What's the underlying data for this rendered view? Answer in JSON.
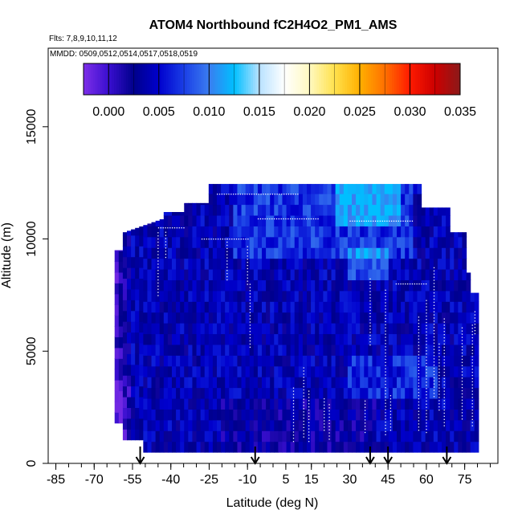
{
  "chart_data": {
    "type": "heatmap",
    "title": "ATOM4 Northbound fC2H4O2_PM1_AMS",
    "flights_label": "Flts: 7,8,9,10,11,12",
    "dates_label": "MMDD: 0509,0512,0514,0517,0518,0519",
    "xlabel": "Latitude (deg N)",
    "ylabel": "Altitude (m)",
    "xlim": [
      -88,
      88
    ],
    "ylim": [
      0,
      18500
    ],
    "x_ticks_labeled": [
      "-85",
      "-70",
      "-55",
      "-40",
      "-25",
      "-10",
      "5",
      "15",
      "30",
      "45",
      "60",
      "75"
    ],
    "x_tick_values": [
      -85,
      -70,
      -55,
      -40,
      -25,
      -10,
      5,
      15,
      30,
      45,
      60,
      75
    ],
    "x_minor_step": 5,
    "y_ticks": [
      "0",
      "5000",
      "10000",
      "15000"
    ],
    "y_tick_values": [
      0,
      5000,
      10000,
      15000
    ],
    "colorbar": {
      "min": -0.0025,
      "max": 0.035,
      "tick_labels": [
        "0.000",
        "0.005",
        "0.010",
        "0.015",
        "0.020",
        "0.025",
        "0.030",
        "0.035"
      ],
      "tick_values": [
        0.0,
        0.005,
        0.01,
        0.015,
        0.02,
        0.025,
        0.03,
        0.035
      ],
      "colors": [
        "#7d2ee8",
        "#3a0fd0",
        "#00008b",
        "#0000cd",
        "#1a3ee6",
        "#3a7df0",
        "#00bfff",
        "#b8e2ff",
        "#ffffff",
        "#fff9c0",
        "#ffe14d",
        "#ffb000",
        "#ff7000",
        "#ff1a00",
        "#cc0000",
        "#8b1a1a"
      ]
    },
    "flight_marker_latitudes": [
      -52,
      -7,
      38,
      45,
      68
    ],
    "profile": {
      "top_altitude_m": 12450,
      "bottom_altitude_m": 500,
      "value_range": [
        -0.002,
        0.0125
      ],
      "typical_value": 0.004
    }
  }
}
